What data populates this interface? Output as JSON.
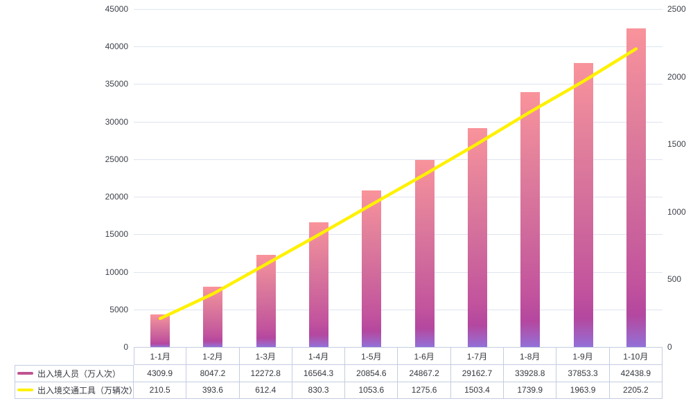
{
  "chart": {
    "left_axis_ticks": [
      "0",
      "5000",
      "10000",
      "15000",
      "20000",
      "25000",
      "30000",
      "35000",
      "40000",
      "45000"
    ],
    "right_axis_ticks": [
      "0",
      "500",
      "1000",
      "1500",
      "2000",
      "2500"
    ]
  },
  "chart_data": {
    "type": "combo",
    "title": "",
    "categories": [
      "1-1月",
      "1-2月",
      "1-3月",
      "1-4月",
      "1-5月",
      "1-6月",
      "1-7月",
      "1-8月",
      "1-9月",
      "1-10月"
    ],
    "series": [
      {
        "name": "出入境人员（万人次）",
        "type": "bar",
        "axis": "left",
        "values": [
          4309.9,
          8047.2,
          12272.8,
          16564.3,
          20854.6,
          24867.2,
          29162.7,
          33928.8,
          37853.3,
          42438.9
        ],
        "colors": {
          "top": "#f9939b",
          "mid": "#c2539d",
          "bottom": "#9270d8",
          "legend": "#bf5391"
        }
      },
      {
        "name": "出入境交通工具（万辆次）",
        "type": "line",
        "axis": "right",
        "values": [
          210.5,
          393.6,
          612.4,
          830.3,
          1053.6,
          1275.6,
          1503.4,
          1739.9,
          1963.9,
          2205.2
        ],
        "color": "#fff100",
        "legend": "#fff100"
      }
    ],
    "left_axis": {
      "min": 0,
      "max": 45000,
      "step": 5000
    },
    "right_axis": {
      "min": 0,
      "max": 2500,
      "step": 500
    },
    "grid": true,
    "legend_position": "data-table-left-column"
  }
}
